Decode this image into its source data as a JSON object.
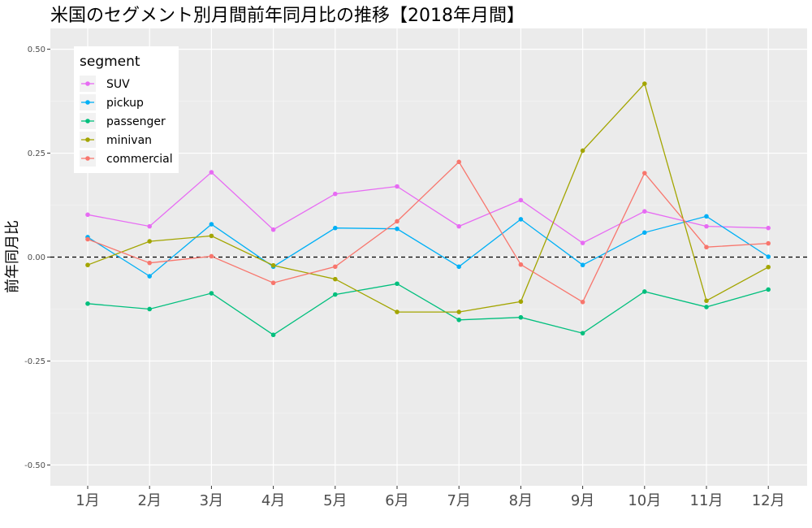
{
  "chart_data": {
    "type": "line",
    "title": "米国のセグメント別月間前年同月比の推移【2018年月間】",
    "xlabel": "",
    "ylabel": "前年同月比",
    "categories": [
      "1月",
      "2月",
      "3月",
      "4月",
      "5月",
      "6月",
      "7月",
      "8月",
      "9月",
      "10月",
      "11月",
      "12月"
    ],
    "ylim": [
      -0.55,
      0.55
    ],
    "yticks": [
      -0.5,
      -0.25,
      0.0,
      0.25,
      0.5
    ],
    "ytick_labels": [
      "-0.50",
      "-0.25",
      "0.00",
      "0.25",
      "0.50"
    ],
    "reference_line": {
      "y": 0,
      "style": "dashed",
      "color": "#000000"
    },
    "grid": true,
    "legend": {
      "title": "segment",
      "placement": "top-left"
    },
    "series": [
      {
        "name": "SUV",
        "color": "#E76BF3",
        "values": [
          0.102,
          0.074,
          0.204,
          0.066,
          0.152,
          0.17,
          0.074,
          0.137,
          0.034,
          0.11,
          0.074,
          0.07
        ]
      },
      {
        "name": "pickup",
        "color": "#00B0F6",
        "values": [
          0.048,
          -0.046,
          0.079,
          -0.023,
          0.07,
          0.068,
          -0.023,
          0.091,
          -0.019,
          0.059,
          0.098,
          0.001
        ]
      },
      {
        "name": "passenger",
        "color": "#00BF7D",
        "values": [
          -0.112,
          -0.125,
          -0.087,
          -0.187,
          -0.09,
          -0.064,
          -0.151,
          -0.145,
          -0.183,
          -0.083,
          -0.12,
          -0.078
        ]
      },
      {
        "name": "minivan",
        "color": "#A3A500",
        "values": [
          -0.019,
          0.038,
          0.051,
          -0.02,
          -0.053,
          -0.132,
          -0.132,
          -0.107,
          0.256,
          0.417,
          -0.105,
          -0.024
        ]
      },
      {
        "name": "commercial",
        "color": "#F8766D",
        "values": [
          0.043,
          -0.014,
          0.002,
          -0.062,
          -0.023,
          0.086,
          0.229,
          -0.018,
          -0.108,
          0.202,
          0.024,
          0.033
        ]
      }
    ]
  }
}
